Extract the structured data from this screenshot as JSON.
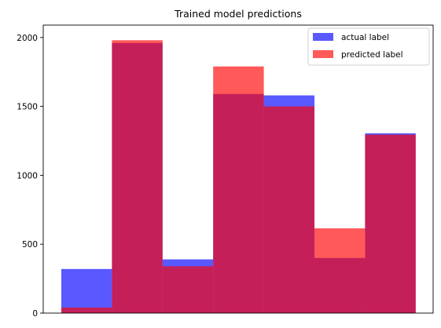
{
  "chart_data": {
    "type": "bar",
    "title": "Trained model predictions",
    "xlabel": "",
    "ylabel": "",
    "ylim": [
      0,
      2090
    ],
    "yticks": [
      0,
      500,
      1000,
      1500,
      2000
    ],
    "bins": 7,
    "grid": false,
    "legend_position": "top-right",
    "colors": {
      "actual": "#0000ff",
      "predicted": "#ff0000",
      "alpha": 0.65
    },
    "series": [
      {
        "name": "actual label",
        "values": [
          320,
          1960,
          390,
          1590,
          1580,
          400,
          1305
        ]
      },
      {
        "name": "predicted label",
        "values": [
          40,
          1980,
          340,
          1790,
          1500,
          615,
          1295
        ]
      }
    ]
  }
}
